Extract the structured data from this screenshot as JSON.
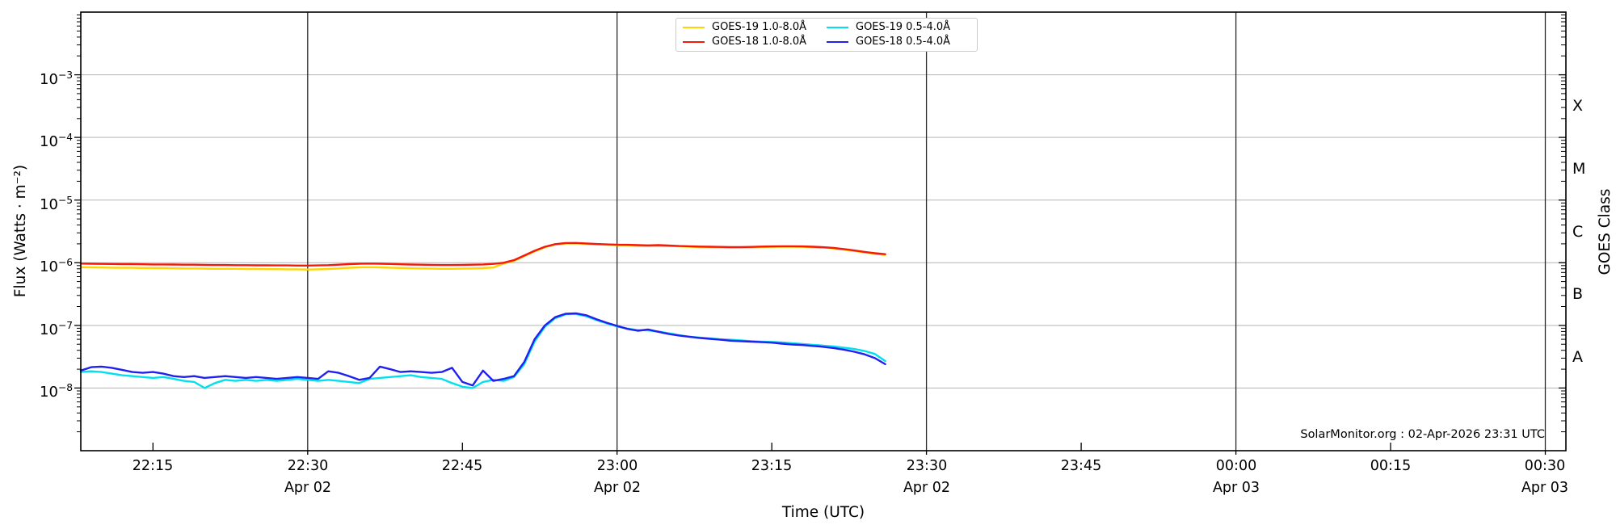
{
  "footer_credit": "SolarMonitor.org : 02-Apr-2026 23:31 UTC",
  "colors": {
    "goes19_long": "#ffd400",
    "goes18_long": "#f5190b",
    "goes19_short": "#00e0ef",
    "goes18_short": "#2020f0",
    "grid_horizontal": "#bcbcbc",
    "grid_vertical": "#2b2b2b",
    "spine": "#000000"
  },
  "legend": {
    "items": [
      {
        "id": "goes19-long",
        "label": "GOES-19 1.0-8.0Å",
        "color": "#ffd400"
      },
      {
        "id": "goes18-long",
        "label": "GOES-18 1.0-8.0Å",
        "color": "#f5190b"
      },
      {
        "id": "goes19-short",
        "label": "GOES-19 0.5-4.0Å",
        "color": "#00e0ef"
      },
      {
        "id": "goes18-short",
        "label": "GOES-18 0.5-4.0Å",
        "color": "#2020f0"
      }
    ]
  },
  "chart_data": {
    "type": "line",
    "title": "",
    "xlabel": "Time (UTC)",
    "ylabel": "Flux (Watts · m⁻²)",
    "right_axis_label": "GOES Class",
    "grid": true,
    "legend_position": "top-center",
    "x_axis": {
      "start_time": "22:08",
      "end_time": "00:32",
      "total_minutes": 144,
      "ticks": [
        {
          "label": "22:15",
          "t": 7
        },
        {
          "label": "22:30",
          "t": 22,
          "date": "Apr 02",
          "grid": true
        },
        {
          "label": "22:45",
          "t": 37
        },
        {
          "label": "23:00",
          "t": 52,
          "date": "Apr 02",
          "grid": true
        },
        {
          "label": "23:15",
          "t": 67
        },
        {
          "label": "23:30",
          "t": 82,
          "date": "Apr 02",
          "grid": true
        },
        {
          "label": "23:45",
          "t": 97
        },
        {
          "label": "00:00",
          "t": 112,
          "date": "Apr 03",
          "grid": true
        },
        {
          "label": "00:15",
          "t": 127
        },
        {
          "label": "00:30",
          "t": 142,
          "date": "Apr 03",
          "grid": true
        }
      ]
    },
    "y_axis": {
      "scale": "log",
      "decade_min": -9,
      "decade_max": -2,
      "labeled_exponents": [
        -3,
        -4,
        -5,
        -6,
        -7,
        -8
      ]
    },
    "right_axis": {
      "label": "GOES Class",
      "classes": [
        {
          "letter": "X",
          "exp_mid": -3.5
        },
        {
          "letter": "M",
          "exp_mid": -4.5
        },
        {
          "letter": "C",
          "exp_mid": -5.5
        },
        {
          "letter": "B",
          "exp_mid": -6.5
        },
        {
          "letter": "A",
          "exp_mid": -7.5
        }
      ]
    },
    "series": [
      {
        "id": "goes19-long",
        "name": "GOES-19 1.0-8.0Å",
        "color": "#ffd400",
        "t0": 0,
        "dt": 1,
        "scale": 1e-06,
        "values": [
          0.85,
          0.845,
          0.84,
          0.835,
          0.83,
          0.83,
          0.825,
          0.82,
          0.82,
          0.815,
          0.81,
          0.81,
          0.805,
          0.8,
          0.8,
          0.8,
          0.795,
          0.795,
          0.79,
          0.79,
          0.785,
          0.785,
          0.78,
          0.785,
          0.795,
          0.81,
          0.83,
          0.845,
          0.85,
          0.845,
          0.835,
          0.825,
          0.815,
          0.81,
          0.805,
          0.8,
          0.8,
          0.805,
          0.81,
          0.82,
          0.84,
          0.97,
          1.07,
          1.27,
          1.52,
          1.77,
          1.95,
          2.03,
          2.04,
          2.0,
          1.96,
          1.93,
          1.91,
          1.9,
          1.88,
          1.86,
          1.88,
          1.85,
          1.82,
          1.8,
          1.78,
          1.77,
          1.76,
          1.75,
          1.75,
          1.76,
          1.78,
          1.79,
          1.8,
          1.8,
          1.79,
          1.77,
          1.74,
          1.69,
          1.62,
          1.54,
          1.46,
          1.39,
          1.33
        ]
      },
      {
        "id": "goes18-long",
        "name": "GOES-18 1.0-8.0Å",
        "color": "#f5190b",
        "t0": 0,
        "dt": 1,
        "scale": 1e-06,
        "values": [
          0.97,
          0.965,
          0.96,
          0.955,
          0.95,
          0.95,
          0.945,
          0.94,
          0.94,
          0.935,
          0.93,
          0.93,
          0.925,
          0.92,
          0.92,
          0.915,
          0.915,
          0.91,
          0.91,
          0.905,
          0.905,
          0.9,
          0.9,
          0.905,
          0.915,
          0.93,
          0.95,
          0.965,
          0.97,
          0.965,
          0.955,
          0.945,
          0.935,
          0.93,
          0.925,
          0.92,
          0.92,
          0.925,
          0.93,
          0.94,
          0.96,
          1.0,
          1.1,
          1.3,
          1.55,
          1.8,
          1.98,
          2.06,
          2.07,
          2.03,
          1.99,
          1.96,
          1.94,
          1.93,
          1.91,
          1.89,
          1.91,
          1.88,
          1.85,
          1.83,
          1.81,
          1.8,
          1.79,
          1.78,
          1.78,
          1.79,
          1.81,
          1.82,
          1.83,
          1.83,
          1.82,
          1.8,
          1.77,
          1.72,
          1.65,
          1.57,
          1.49,
          1.42,
          1.37
        ]
      },
      {
        "id": "goes19-short",
        "name": "GOES-19 0.5-4.0Å",
        "color": "#00e0ef",
        "t0": 0,
        "dt": 1,
        "scale": 1e-08,
        "values": [
          1.8,
          1.85,
          1.8,
          1.7,
          1.6,
          1.55,
          1.5,
          1.45,
          1.5,
          1.4,
          1.3,
          1.25,
          1.0,
          1.2,
          1.35,
          1.3,
          1.35,
          1.3,
          1.35,
          1.3,
          1.35,
          1.4,
          1.35,
          1.3,
          1.35,
          1.3,
          1.25,
          1.2,
          1.4,
          1.45,
          1.5,
          1.55,
          1.6,
          1.5,
          1.45,
          1.4,
          1.2,
          1.05,
          1.0,
          1.25,
          1.35,
          1.3,
          1.5,
          2.4,
          5.5,
          9.5,
          13.0,
          15.0,
          15.2,
          14.0,
          12.2,
          10.8,
          9.6,
          8.9,
          8.4,
          8.3,
          8.0,
          7.5,
          7.0,
          6.6,
          6.4,
          6.2,
          6.0,
          5.9,
          5.75,
          5.6,
          5.5,
          5.45,
          5.35,
          5.2,
          5.05,
          4.9,
          4.75,
          4.6,
          4.4,
          4.2,
          3.9,
          3.5,
          2.7
        ]
      },
      {
        "id": "goes18-short",
        "name": "GOES-18 0.5-4.0Å",
        "color": "#2020f0",
        "t0": 0,
        "dt": 1,
        "scale": 1e-08,
        "values": [
          1.9,
          2.15,
          2.2,
          2.1,
          1.95,
          1.8,
          1.75,
          1.8,
          1.7,
          1.55,
          1.5,
          1.55,
          1.45,
          1.5,
          1.55,
          1.5,
          1.45,
          1.5,
          1.45,
          1.4,
          1.45,
          1.5,
          1.45,
          1.4,
          1.85,
          1.75,
          1.55,
          1.35,
          1.45,
          2.2,
          2.0,
          1.8,
          1.85,
          1.8,
          1.75,
          1.8,
          2.1,
          1.25,
          1.1,
          1.9,
          1.3,
          1.4,
          1.55,
          2.6,
          6.0,
          10.0,
          13.5,
          15.3,
          15.6,
          14.5,
          12.5,
          11.0,
          9.8,
          8.8,
          8.2,
          8.6,
          7.9,
          7.3,
          6.9,
          6.6,
          6.3,
          6.1,
          5.9,
          5.7,
          5.6,
          5.5,
          5.4,
          5.3,
          5.1,
          4.95,
          4.85,
          4.7,
          4.55,
          4.35,
          4.1,
          3.8,
          3.45,
          3.0,
          2.4
        ]
      }
    ]
  }
}
